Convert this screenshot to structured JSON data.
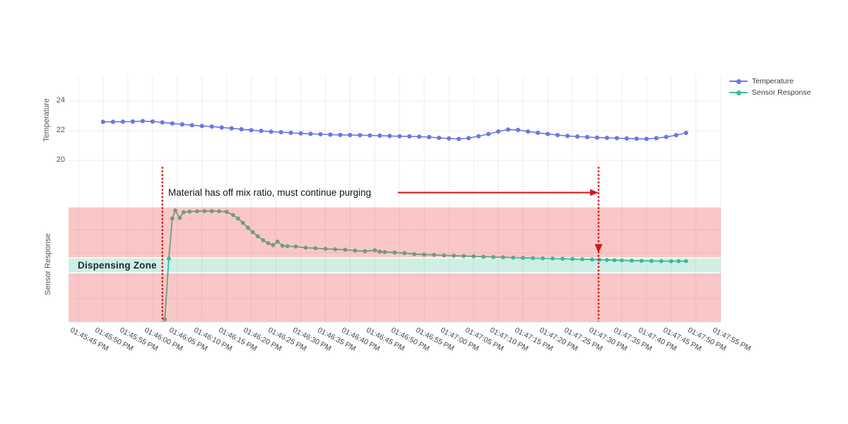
{
  "legend": {
    "items": [
      {
        "label": "Temperature",
        "color": "#6d76e4"
      },
      {
        "label": "Sensor Response",
        "color": "#3abd96"
      }
    ]
  },
  "axes": {
    "top_y_title": "Temperature",
    "top_y_tick_labels": [
      "24",
      "22",
      "20"
    ],
    "bottom_y_title": "Sensor Response",
    "x_tick_labels": [
      "01:45:45 PM",
      "01:45:50 PM",
      "01:45:55 PM",
      "01:46:00 PM",
      "01:46:05 PM",
      "01:46:10 PM",
      "01:46:15 PM",
      "01:46:20 PM",
      "01:46:25 PM",
      "01:46:30 PM",
      "01:46:35 PM",
      "01:46:40 PM",
      "01:46:45 PM",
      "01:46:50 PM",
      "01:46:55 PM",
      "01:47:00 PM",
      "01:47:05 PM",
      "01:47:10 PM",
      "01:47:15 PM",
      "01:47:20 PM",
      "01:47:25 PM",
      "01:47:30 PM",
      "01:47:35 PM",
      "01:47:40 PM",
      "01:47:45 PM",
      "01:47:50 PM",
      "01:47:55 PM"
    ]
  },
  "annotations": {
    "purge_note": "Material has off mix ratio, must continue purging",
    "zone_label": "Dispensing Zone"
  },
  "colors": {
    "temperature_line": "#6d76e4",
    "sensor_line": "#3abd96",
    "annotation_red": "#d21616",
    "grid": "#ededed",
    "out_of_zone_overlay": "rgba(235,82,82,0.32)",
    "zone_overlay": "rgba(56,188,148,0.24)",
    "axis_line": "#d8d8d8"
  },
  "chart_data": [
    {
      "type": "line",
      "name": "Temperature",
      "ylabel": "Temperature",
      "ylim": [
        19.6,
        25.6
      ],
      "y_gridlines": [
        20,
        22,
        24
      ],
      "x_unit": "seconds after 01:45:45 PM",
      "x_start": 5,
      "x_step": 2,
      "values": [
        22.6,
        22.6,
        22.61,
        22.62,
        22.65,
        22.62,
        22.56,
        22.49,
        22.43,
        22.37,
        22.32,
        22.28,
        22.22,
        22.16,
        22.1,
        22.04,
        21.99,
        21.94,
        21.9,
        21.86,
        21.82,
        21.79,
        21.76,
        21.74,
        21.72,
        21.71,
        21.7,
        21.68,
        21.67,
        21.65,
        21.63,
        21.62,
        21.6,
        21.57,
        21.52,
        21.48,
        21.45,
        21.5,
        21.63,
        21.78,
        21.95,
        22.08,
        22.05,
        21.95,
        21.86,
        21.78,
        21.71,
        21.65,
        21.61,
        21.57,
        21.54,
        21.52,
        21.5,
        21.48,
        21.46,
        21.45,
        21.5,
        21.58,
        21.7,
        21.85
      ]
    },
    {
      "type": "line",
      "name": "Sensor Response",
      "ylabel": "Sensor Response",
      "y_unit": "normalized (0 = plot bottom, 1 = plot top)",
      "x_unit": "seconds after 01:45:45 PM",
      "dispensing_zone": {
        "label": "Dispensing Zone",
        "v_low": 0.43,
        "v_high": 0.552
      },
      "v_gridlines": [
        0.2,
        0.4,
        0.6,
        0.8
      ],
      "markers": {
        "line1_t": 17,
        "line2_t": 105.3,
        "line1_time": "01:46:02 PM",
        "line2_time": "01:47:30 PM"
      },
      "points": [
        [
          17.5,
          0.02
        ],
        [
          18.3,
          0.55
        ],
        [
          19,
          0.9
        ],
        [
          19.6,
          0.97
        ],
        [
          20.5,
          0.905
        ],
        [
          21.3,
          0.955
        ],
        [
          22.5,
          0.96
        ],
        [
          24,
          0.963
        ],
        [
          25.5,
          0.965
        ],
        [
          27,
          0.965
        ],
        [
          28.5,
          0.963
        ],
        [
          30,
          0.958
        ],
        [
          31.3,
          0.93
        ],
        [
          32.3,
          0.9
        ],
        [
          33.3,
          0.862
        ],
        [
          34.3,
          0.82
        ],
        [
          35.3,
          0.78
        ],
        [
          36.3,
          0.745
        ],
        [
          37.4,
          0.71
        ],
        [
          38.4,
          0.685
        ],
        [
          39.4,
          0.668
        ],
        [
          40.3,
          0.698
        ],
        [
          41.3,
          0.662
        ],
        [
          42.3,
          0.658
        ],
        [
          44,
          0.655
        ],
        [
          46,
          0.645
        ],
        [
          48,
          0.64
        ],
        [
          50,
          0.635
        ],
        [
          52,
          0.631
        ],
        [
          54,
          0.627
        ],
        [
          56,
          0.62
        ],
        [
          58,
          0.615
        ],
        [
          60,
          0.622
        ],
        [
          61,
          0.61
        ],
        [
          62,
          0.607
        ],
        [
          64,
          0.603
        ],
        [
          66,
          0.598
        ],
        [
          68,
          0.588
        ],
        [
          70,
          0.585
        ],
        [
          72,
          0.582
        ],
        [
          74,
          0.578
        ],
        [
          76,
          0.575
        ],
        [
          78,
          0.572
        ],
        [
          80,
          0.569
        ],
        [
          82,
          0.566
        ],
        [
          84,
          0.563
        ],
        [
          86,
          0.561
        ],
        [
          88,
          0.558
        ],
        [
          90,
          0.556
        ],
        [
          92,
          0.554
        ],
        [
          94,
          0.552
        ],
        [
          96,
          0.55
        ],
        [
          98,
          0.548
        ],
        [
          100,
          0.546
        ],
        [
          102,
          0.544
        ],
        [
          104,
          0.542
        ],
        [
          105.5,
          0.54
        ],
        [
          107,
          0.538
        ],
        [
          108.5,
          0.536
        ],
        [
          110,
          0.534
        ],
        [
          112,
          0.532
        ],
        [
          114,
          0.53
        ],
        [
          116,
          0.529
        ],
        [
          118,
          0.528
        ],
        [
          120,
          0.527
        ],
        [
          121.5,
          0.527
        ],
        [
          123,
          0.528
        ]
      ]
    }
  ]
}
